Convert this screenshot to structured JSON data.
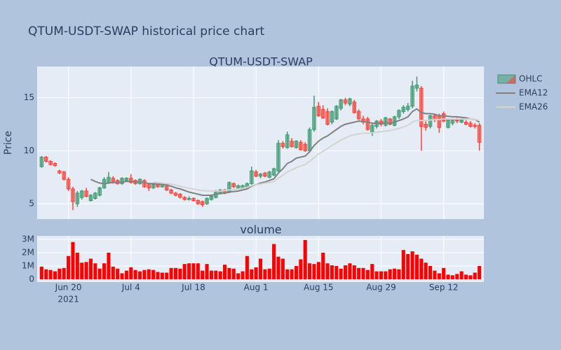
{
  "chart_data": [
    {
      "type": "candlestick",
      "title": "QTUM-USDT-SWAP historical price chart",
      "subtitle": "QTUM-USDT-SWAP",
      "y_label": "Price",
      "x": [
        "2021-06-14",
        "2021-06-15",
        "2021-06-16",
        "2021-06-17",
        "2021-06-18",
        "2021-06-19",
        "2021-06-20",
        "2021-06-21",
        "2021-06-22",
        "2021-06-23",
        "2021-06-24",
        "2021-06-25",
        "2021-06-26",
        "2021-06-27",
        "2021-06-28",
        "2021-06-29",
        "2021-06-30",
        "2021-07-01",
        "2021-07-02",
        "2021-07-03",
        "2021-07-04",
        "2021-07-05",
        "2021-07-06",
        "2021-07-07",
        "2021-07-08",
        "2021-07-09",
        "2021-07-10",
        "2021-07-11",
        "2021-07-12",
        "2021-07-13",
        "2021-07-14",
        "2021-07-15",
        "2021-07-16",
        "2021-07-17",
        "2021-07-18",
        "2021-07-19",
        "2021-07-20",
        "2021-07-21",
        "2021-07-22",
        "2021-07-23",
        "2021-07-24",
        "2021-07-25",
        "2021-07-26",
        "2021-07-27",
        "2021-07-28",
        "2021-07-29",
        "2021-07-30",
        "2021-07-31",
        "2021-08-01",
        "2021-08-02",
        "2021-08-03",
        "2021-08-04",
        "2021-08-05",
        "2021-08-06",
        "2021-08-07",
        "2021-08-08",
        "2021-08-09",
        "2021-08-10",
        "2021-08-11",
        "2021-08-12",
        "2021-08-13",
        "2021-08-14",
        "2021-08-15",
        "2021-08-16",
        "2021-08-17",
        "2021-08-18",
        "2021-08-19",
        "2021-08-20",
        "2021-08-21",
        "2021-08-22",
        "2021-08-23",
        "2021-08-24",
        "2021-08-25",
        "2021-08-26",
        "2021-08-27",
        "2021-08-28",
        "2021-08-29",
        "2021-08-30",
        "2021-08-31",
        "2021-09-01",
        "2021-09-02",
        "2021-09-03",
        "2021-09-04",
        "2021-09-05",
        "2021-09-06",
        "2021-09-07",
        "2021-09-08",
        "2021-09-09",
        "2021-09-10",
        "2021-09-11",
        "2021-09-12",
        "2021-09-13",
        "2021-09-14",
        "2021-09-15",
        "2021-09-16",
        "2021-09-17",
        "2021-09-18",
        "2021-09-19",
        "2021-09-20"
      ],
      "ohlc_name": "OHLC",
      "increasing_color": "#3d9970",
      "decreasing_color": "#ff4136",
      "open": [
        8.5,
        9.4,
        9.0,
        8.8,
        8.1,
        8.0,
        7.3,
        6.4,
        5.0,
        5.6,
        6.2,
        5.3,
        5.5,
        5.8,
        6.5,
        7.0,
        7.4,
        7.2,
        6.9,
        7.2,
        7.4,
        7.2,
        6.9,
        7.2,
        6.8,
        6.5,
        6.8,
        6.6,
        6.8,
        6.3,
        6.0,
        5.9,
        5.6,
        5.4,
        5.5,
        5.3,
        5.2,
        5.0,
        5.4,
        5.6,
        6.0,
        6.3,
        6.1,
        6.9,
        6.5,
        6.5,
        6.6,
        6.9,
        8.0,
        7.6,
        7.9,
        7.5,
        7.7,
        8.1,
        10.7,
        10.3,
        10.9,
        10.3,
        10.8,
        10.6,
        10.0,
        12.0,
        14.2,
        13.9,
        13.7,
        12.7,
        13.0,
        14.0,
        14.8,
        14.4,
        14.6,
        13.7,
        13.0,
        13.0,
        11.8,
        12.3,
        12.8,
        12.4,
        13.0,
        12.4,
        13.2,
        13.7,
        13.9,
        14.2,
        15.9,
        15.9,
        12.5,
        12.3,
        13.3,
        13.3,
        13.5,
        12.2,
        12.6,
        12.9,
        12.7,
        12.7,
        12.6,
        12.4,
        12.4
      ],
      "high": [
        9.5,
        9.5,
        9.1,
        8.9,
        8.2,
        8.1,
        7.5,
        6.6,
        6.2,
        6.3,
        6.5,
        5.9,
        6.1,
        6.6,
        7.5,
        8.0,
        7.6,
        7.3,
        7.5,
        7.5,
        7.8,
        7.3,
        7.4,
        7.3,
        6.9,
        6.9,
        6.9,
        6.9,
        6.9,
        6.4,
        6.1,
        6.0,
        5.7,
        5.7,
        5.6,
        5.4,
        5.3,
        5.6,
        5.8,
        6.3,
        6.4,
        6.4,
        7.1,
        7.0,
        6.8,
        6.8,
        7.0,
        8.5,
        8.2,
        7.9,
        8.0,
        8.1,
        8.4,
        11.0,
        10.9,
        11.8,
        11.2,
        11.0,
        11.0,
        10.8,
        12.2,
        15.2,
        14.6,
        14.3,
        14.0,
        13.8,
        14.3,
        14.9,
        15.0,
        15.0,
        14.8,
        13.9,
        13.3,
        13.2,
        12.6,
        12.9,
        13.0,
        13.2,
        13.1,
        13.3,
        13.9,
        14.3,
        14.5,
        16.6,
        17.0,
        16.1,
        12.9,
        13.4,
        13.5,
        13.5,
        13.7,
        13.0,
        13.0,
        13.1,
        13.0,
        12.9,
        12.8,
        12.6,
        12.6
      ],
      "low": [
        8.4,
        8.9,
        8.6,
        8.5,
        7.8,
        7.2,
        6.2,
        4.4,
        4.7,
        5.4,
        5.6,
        5.2,
        5.4,
        5.7,
        6.4,
        6.9,
        6.9,
        6.8,
        6.8,
        7.1,
        6.9,
        6.8,
        6.8,
        6.5,
        6.2,
        6.4,
        6.5,
        6.5,
        6.2,
        5.9,
        5.7,
        5.5,
        5.3,
        5.3,
        5.2,
        4.9,
        4.7,
        4.9,
        5.3,
        5.5,
        5.9,
        5.9,
        6.0,
        6.5,
        6.4,
        6.4,
        6.5,
        6.8,
        7.5,
        7.4,
        7.5,
        7.4,
        7.6,
        8.0,
        10.2,
        10.2,
        10.3,
        10.2,
        10.0,
        9.9,
        9.9,
        11.8,
        13.2,
        13.0,
        12.4,
        12.5,
        12.9,
        13.8,
        14.3,
        14.2,
        13.5,
        12.9,
        12.5,
        11.9,
        11.4,
        12.1,
        12.3,
        12.3,
        12.4,
        12.3,
        13.0,
        13.5,
        13.7,
        14.0,
        15.6,
        10.0,
        11.9,
        12.1,
        12.7,
        11.7,
        12.7,
        12.1,
        12.4,
        12.6,
        12.6,
        12.4,
        12.2,
        12.1,
        10.0
      ],
      "close": [
        9.4,
        9.0,
        8.7,
        8.6,
        7.9,
        7.3,
        6.4,
        5.2,
        6.0,
        6.2,
        5.7,
        5.8,
        6.0,
        6.5,
        7.3,
        7.5,
        7.0,
        6.9,
        7.4,
        7.4,
        7.0,
        6.9,
        7.3,
        6.6,
        6.5,
        6.8,
        6.6,
        6.8,
        6.3,
        6.0,
        5.8,
        5.6,
        5.4,
        5.5,
        5.3,
        5.0,
        4.9,
        5.5,
        5.7,
        6.2,
        6.3,
        6.0,
        7.0,
        6.6,
        6.7,
        6.7,
        6.9,
        8.1,
        7.6,
        7.8,
        7.6,
        8.0,
        8.3,
        10.7,
        10.4,
        11.5,
        10.4,
        10.9,
        10.1,
        10.0,
        12.0,
        14.1,
        13.3,
        13.1,
        12.5,
        13.7,
        14.2,
        14.8,
        14.5,
        14.9,
        13.6,
        13.0,
        12.7,
        12.0,
        12.4,
        12.8,
        12.5,
        13.1,
        12.5,
        13.2,
        13.8,
        14.1,
        14.2,
        16.1,
        16.2,
        12.3,
        12.2,
        13.3,
        12.9,
        12.2,
        12.8,
        12.9,
        12.9,
        12.8,
        12.9,
        12.5,
        12.3,
        12.3,
        10.8
      ],
      "series": [
        {
          "name": "EMA12",
          "color": "#808080",
          "values": [
            null,
            null,
            null,
            null,
            null,
            null,
            null,
            null,
            null,
            null,
            null,
            7.3,
            7.1,
            6.95,
            6.9,
            6.95,
            7.0,
            7.0,
            7.05,
            7.1,
            7.1,
            7.05,
            7.05,
            7.0,
            6.9,
            6.9,
            6.85,
            6.85,
            6.75,
            6.65,
            6.5,
            6.4,
            6.25,
            6.1,
            6.0,
            5.9,
            5.8,
            5.8,
            5.8,
            5.9,
            5.95,
            6.0,
            6.1,
            6.15,
            6.2,
            6.3,
            6.4,
            6.65,
            6.8,
            6.95,
            7.05,
            7.2,
            7.35,
            7.9,
            8.3,
            8.8,
            9.0,
            9.3,
            9.4,
            9.5,
            9.9,
            10.5,
            10.9,
            11.2,
            11.4,
            11.7,
            12.0,
            12.3,
            12.5,
            12.6,
            12.7,
            12.8,
            12.75,
            12.7,
            12.6,
            12.6,
            12.6,
            12.65,
            12.6,
            12.7,
            12.85,
            13.0,
            13.2,
            13.7,
            13.95,
            13.6,
            13.5,
            13.5,
            13.45,
            13.3,
            13.3,
            13.25,
            13.2,
            13.2,
            13.15,
            13.1,
            13.0,
            12.95,
            12.7
          ]
        },
        {
          "name": "EMA26",
          "color": "#d3d3d3",
          "values": [
            null,
            null,
            null,
            null,
            null,
            null,
            null,
            null,
            null,
            null,
            null,
            null,
            null,
            null,
            null,
            null,
            null,
            null,
            null,
            null,
            null,
            null,
            null,
            null,
            null,
            7.05,
            7.0,
            6.95,
            6.9,
            6.85,
            6.75,
            6.65,
            6.55,
            6.45,
            6.4,
            6.3,
            6.25,
            6.2,
            6.2,
            6.2,
            6.2,
            6.25,
            6.3,
            6.35,
            6.4,
            6.45,
            6.55,
            6.7,
            6.8,
            6.85,
            6.95,
            7.0,
            7.1,
            7.4,
            7.7,
            8.0,
            8.2,
            8.4,
            8.55,
            8.7,
            9.0,
            9.35,
            9.7,
            9.95,
            10.2,
            10.5,
            10.75,
            11.0,
            11.2,
            11.4,
            11.5,
            11.6,
            11.65,
            11.65,
            11.7,
            11.75,
            11.8,
            11.85,
            11.9,
            12.0,
            12.1,
            12.25,
            12.4,
            12.7,
            12.85,
            12.85,
            12.85,
            12.9,
            12.95,
            12.95,
            13.0,
            13.0,
            13.0,
            13.0,
            13.0,
            13.0,
            13.0,
            12.95,
            12.85
          ]
        }
      ],
      "xlim": [
        "2021-06-13",
        "2021-09-21"
      ],
      "ylim": [
        3.55,
        17.95
      ],
      "yticks": [
        5,
        10,
        15
      ],
      "grid": true
    },
    {
      "type": "bar",
      "subtitle": "volume",
      "color": "#ff0000",
      "values": [
        950000,
        750000,
        700000,
        600000,
        800000,
        850000,
        1750000,
        2800000,
        2000000,
        1250000,
        1300000,
        1550000,
        1200000,
        800000,
        1200000,
        2000000,
        950000,
        800000,
        450000,
        650000,
        900000,
        700000,
        600000,
        700000,
        750000,
        700000,
        550000,
        500000,
        500000,
        850000,
        850000,
        800000,
        1150000,
        1200000,
        1200000,
        1200000,
        650000,
        1150000,
        650000,
        650000,
        600000,
        1100000,
        850000,
        800000,
        450000,
        600000,
        1750000,
        750000,
        900000,
        1550000,
        750000,
        800000,
        2650000,
        1700000,
        1550000,
        750000,
        750000,
        1000000,
        1500000,
        2950000,
        1200000,
        1150000,
        1300000,
        2000000,
        1200000,
        1050000,
        1000000,
        800000,
        1050000,
        1200000,
        1050000,
        850000,
        850000,
        700000,
        1150000,
        600000,
        600000,
        600000,
        750000,
        800000,
        750000,
        2200000,
        1900000,
        2100000,
        1850000,
        1550000,
        1250000,
        1000000,
        650000,
        450000,
        850000,
        350000,
        300000,
        400000,
        600000,
        350000,
        300000,
        500000,
        1000000
      ],
      "ylim": [
        -210000,
        3260000
      ],
      "yticks": [
        0,
        {
          "value": 1000000,
          "label": "1M"
        },
        {
          "value": 2000000,
          "label": "2M"
        },
        {
          "value": 3000000,
          "label": "3M"
        }
      ],
      "xticks": [
        {
          "value": "2021-06-20",
          "label": "Jun 20"
        },
        {
          "value": "2021-07-04",
          "label": "Jul 4"
        },
        {
          "value": "2021-07-18",
          "label": "Jul 18"
        },
        {
          "value": "2021-08-01",
          "label": "Aug 1"
        },
        {
          "value": "2021-08-15",
          "label": "Aug 15"
        },
        {
          "value": "2021-08-29",
          "label": "Aug 29"
        },
        {
          "value": "2021-09-12",
          "label": "Sep 12"
        }
      ],
      "year_label": "2021",
      "grid": true
    }
  ]
}
